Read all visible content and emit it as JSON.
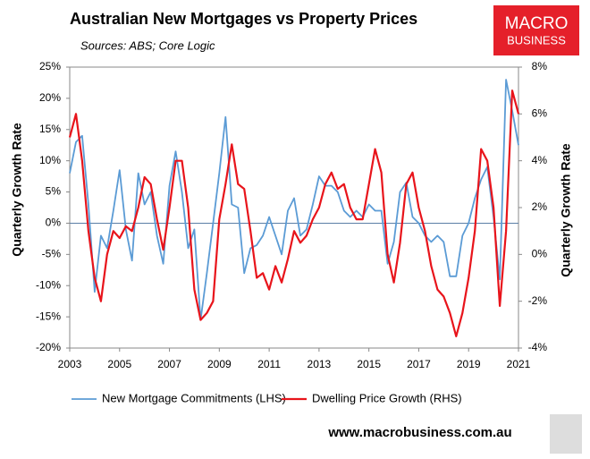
{
  "chart_data": {
    "type": "line",
    "title": "Australian New Mortgages vs Property Prices",
    "subtitle": "Sources: ABS; Core Logic",
    "y_label": "Quarterly  Growth Rate",
    "y2_label": "Quarterly Growth Rate",
    "logo": [
      "MACRO",
      "BUSINESS"
    ],
    "footer": "www.macrobusiness.com.au",
    "x": [
      2003,
      2003.25,
      2003.5,
      2003.75,
      2004,
      2004.25,
      2004.5,
      2004.75,
      2005,
      2005.25,
      2005.5,
      2005.75,
      2006,
      2006.25,
      2006.5,
      2006.75,
      2007,
      2007.25,
      2007.5,
      2007.75,
      2008,
      2008.25,
      2008.5,
      2008.75,
      2009,
      2009.25,
      2009.5,
      2009.75,
      2010,
      2010.25,
      2010.5,
      2010.75,
      2011,
      2011.25,
      2011.5,
      2011.75,
      2012,
      2012.25,
      2012.5,
      2012.75,
      2013,
      2013.25,
      2013.5,
      2013.75,
      2014,
      2014.25,
      2014.5,
      2014.75,
      2015,
      2015.25,
      2015.5,
      2015.75,
      2016,
      2016.25,
      2016.5,
      2016.75,
      2017,
      2017.25,
      2017.5,
      2017.75,
      2018,
      2018.25,
      2018.5,
      2018.75,
      2019,
      2019.25,
      2019.5,
      2019.75,
      2020,
      2020.25,
      2020.5,
      2020.75,
      2021
    ],
    "series": [
      {
        "name": "New Mortgage Commitments (LHS)",
        "color": "#5b9bd5",
        "axis": "y",
        "values": [
          8,
          13,
          14,
          3,
          -11,
          -2,
          -4,
          2,
          8.5,
          -1,
          -6,
          8,
          3,
          5,
          -2,
          -6.5,
          6,
          11.5,
          5,
          -4,
          -1,
          -15.5,
          -8,
          0,
          8,
          17,
          3,
          2.5,
          -8,
          -4,
          -3.5,
          -2,
          1,
          -2,
          -5,
          2,
          4,
          -2,
          -1,
          3,
          7.5,
          6,
          6,
          5,
          2,
          1,
          2,
          1,
          3,
          2,
          2,
          -6.5,
          -3,
          5,
          6.5,
          1,
          0,
          -2,
          -3,
          -2,
          -3,
          -8.5,
          -8.5,
          -2,
          0,
          4,
          7,
          9,
          1,
          -9,
          23,
          18,
          12.5
        ]
      },
      {
        "name": "Dwelling Price Growth (RHS)",
        "color": "#e8141b",
        "axis": "y2",
        "values": [
          5,
          6,
          4,
          1,
          -1,
          -2,
          0,
          1,
          0.7,
          1.2,
          1,
          2,
          3.3,
          3,
          1.5,
          0.2,
          2,
          4,
          4,
          2,
          -1.5,
          -2.8,
          -2.5,
          -2,
          1.5,
          3,
          4.7,
          3,
          2.8,
          1,
          -1,
          -0.8,
          -1.5,
          -0.5,
          -1.2,
          -0.2,
          1,
          0.5,
          0.8,
          1.5,
          2,
          3,
          3.5,
          2.8,
          3,
          2,
          1.5,
          1.5,
          3,
          4.5,
          3.5,
          0,
          -1.2,
          0.5,
          3,
          3.5,
          2,
          1,
          -0.5,
          -1.5,
          -1.8,
          -2.5,
          -3.5,
          -2.5,
          -1,
          1,
          4.5,
          4,
          2,
          -2.2,
          1,
          7,
          6
        ]
      }
    ],
    "xlim": [
      2003,
      2021
    ],
    "xticks": [
      2003,
      2005,
      2007,
      2009,
      2011,
      2013,
      2015,
      2017,
      2019,
      2021
    ],
    "ylim": [
      -20,
      25
    ],
    "yticks": [
      {
        "value": -20,
        "label": "-20%"
      },
      {
        "value": -15,
        "label": "-15%"
      },
      {
        "value": -10,
        "label": "-10%"
      },
      {
        "value": -5,
        "label": "-5%"
      },
      {
        "value": 0,
        "label": "0%"
      },
      {
        "value": 5,
        "label": "5%"
      },
      {
        "value": 10,
        "label": "10%"
      },
      {
        "value": 15,
        "label": "15%"
      },
      {
        "value": 20,
        "label": "20%"
      },
      {
        "value": 25,
        "label": "25%"
      }
    ],
    "y2lim": [
      -4,
      8
    ],
    "y2ticks": [
      {
        "value": -4,
        "label": "-4%"
      },
      {
        "value": -2,
        "label": "-2%"
      },
      {
        "value": 0,
        "label": "0%"
      },
      {
        "value": 2,
        "label": "2%"
      },
      {
        "value": 4,
        "label": "4%"
      },
      {
        "value": 6,
        "label": "6%"
      },
      {
        "value": 8,
        "label": "8%"
      }
    ]
  }
}
